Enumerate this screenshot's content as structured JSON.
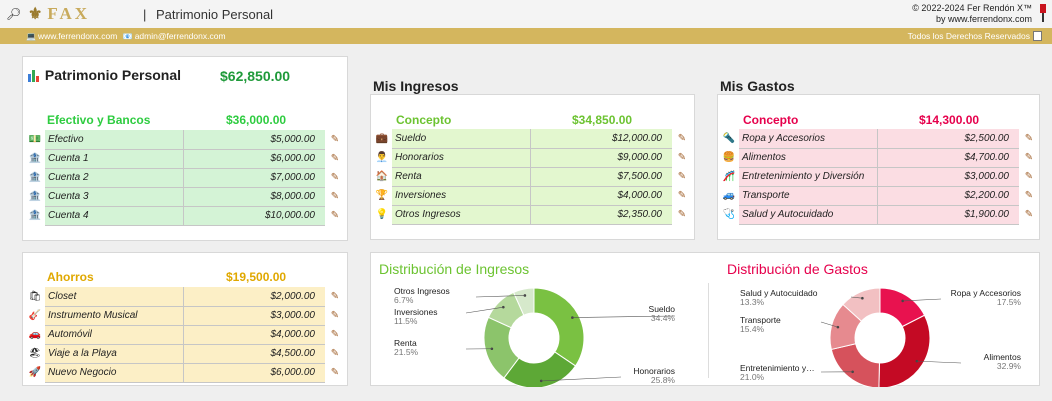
{
  "topbar": {
    "logo_text": "FAX",
    "separator": "|",
    "title": "Patrimonio Personal",
    "copyright_line1": "© 2022-2024 Fer Rendón X™",
    "copyright_line2": "by www.ferrendonx.com"
  },
  "infobar": {
    "website": "www.ferrendonx.com",
    "email": "admin@ferrendonx.com",
    "rights": "Todos los Derechos Reservados"
  },
  "patrimonio": {
    "title": "Patrimonio Personal",
    "total": "$62,850.00"
  },
  "efectivo": {
    "header": "Efectivo y Bancos",
    "total": "$36,000.00",
    "color": "#2ecc40",
    "rows": [
      {
        "icon": "💵",
        "label": "Efectivo",
        "amount": "$5,000.00"
      },
      {
        "icon": "🏦",
        "label": "Cuenta 1",
        "amount": "$6,000.00"
      },
      {
        "icon": "🏦",
        "label": "Cuenta 2",
        "amount": "$7,000.00"
      },
      {
        "icon": "🏦",
        "label": "Cuenta 3",
        "amount": "$8,000.00"
      },
      {
        "icon": "🏦",
        "label": "Cuenta 4",
        "amount": "$10,000.00"
      }
    ]
  },
  "ahorros": {
    "header": "Ahorros",
    "total": "$19,500.00",
    "color": "#e0a800",
    "rows": [
      {
        "icon": "🛍",
        "label": "Closet",
        "amount": "$2,000.00"
      },
      {
        "icon": "🎸",
        "label": "Instrumento Musical",
        "amount": "$3,000.00"
      },
      {
        "icon": "🚗",
        "label": "Automóvil",
        "amount": "$4,000.00"
      },
      {
        "icon": "🏖",
        "label": "Viaje a la Playa",
        "amount": "$4,500.00"
      },
      {
        "icon": "🚀",
        "label": "Nuevo Negocio",
        "amount": "$6,000.00"
      }
    ]
  },
  "ingresos": {
    "section_title": "Mis Ingresos",
    "header": "Concepto",
    "total": "$34,850.00",
    "color": "#6cc331",
    "rows": [
      {
        "icon": "💼",
        "label": "Sueldo",
        "amount": "$12,000.00"
      },
      {
        "icon": "👨‍💼",
        "label": "Honorarios",
        "amount": "$9,000.00"
      },
      {
        "icon": "🏠",
        "label": "Renta",
        "amount": "$7,500.00"
      },
      {
        "icon": "🏆",
        "label": "Inversiones",
        "amount": "$4,000.00"
      },
      {
        "icon": "💡",
        "label": "Otros Ingresos",
        "amount": "$2,350.00"
      }
    ]
  },
  "gastos": {
    "section_title": "Mis Gastos",
    "header": "Concepto",
    "total": "$14,300.00",
    "color": "#e6004c",
    "rows": [
      {
        "icon": "🔦",
        "label": "Ropa y Accesorios",
        "amount": "$2,500.00"
      },
      {
        "icon": "🍔",
        "label": "Alimentos",
        "amount": "$4,700.00"
      },
      {
        "icon": "🎢",
        "label": "Entretenimiento y Diversión",
        "amount": "$3,000.00"
      },
      {
        "icon": "🚙",
        "label": "Transporte",
        "amount": "$2,200.00"
      },
      {
        "icon": "🩺",
        "label": "Salud y Autocuidado",
        "amount": "$1,900.00"
      }
    ]
  },
  "edit_icon": "✎",
  "chart_data": [
    {
      "type": "pie",
      "title": "Distribución de Ingresos",
      "title_color": "#6cc331",
      "categories": [
        "Sueldo",
        "Honorarios",
        "Renta",
        "Inversiones",
        "Otros Ingresos"
      ],
      "values": [
        34.4,
        25.8,
        21.5,
        11.5,
        6.7
      ],
      "labels": [
        "34.4%",
        "25.8%",
        "21.5%",
        "11.5%",
        "6.7%"
      ],
      "colors": [
        "#7ac142",
        "#5da836",
        "#8cc46b",
        "#b5d99c",
        "#d6e9cb"
      ]
    },
    {
      "type": "pie",
      "title": "Distribución de Gastos",
      "title_color": "#e6004c",
      "categories": [
        "Ropa y Accesorios",
        "Alimentos",
        "Entretenimiento y…",
        "Transporte",
        "Salud y Autocuidado"
      ],
      "values": [
        17.5,
        32.9,
        21.0,
        15.4,
        13.3
      ],
      "labels": [
        "17.5%",
        "32.9%",
        "21.0%",
        "15.4%",
        "13.3%"
      ],
      "colors": [
        "#e8124f",
        "#c40a24",
        "#d6525c",
        "#e68a8f",
        "#f2c0c2"
      ]
    }
  ]
}
